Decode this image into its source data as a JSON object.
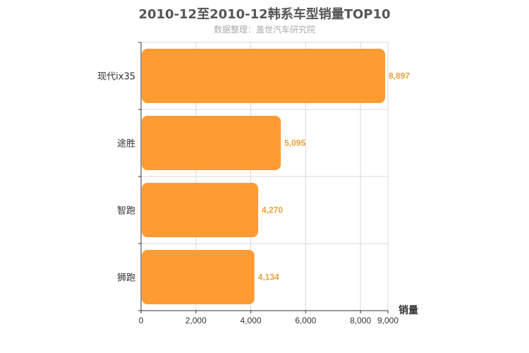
{
  "chart_data": {
    "type": "bar",
    "orientation": "horizontal",
    "title": "2010-12至2010-12韩系车型销量TOP10",
    "subtitle": "数据整理：盖世汽车研究院",
    "categories": [
      "现代ix35",
      "途胜",
      "智跑",
      "狮跑"
    ],
    "values": [
      8897,
      5095,
      4270,
      4134
    ],
    "value_labels": [
      "8,897",
      "5,095",
      "4,270",
      "4,134"
    ],
    "xlabel": "销量",
    "ylabel": "",
    "xlim": [
      0,
      9000
    ],
    "x_ticks": [
      0,
      2000,
      4000,
      6000,
      8000,
      9000
    ],
    "x_tick_labels": [
      "0",
      "2,000",
      "4,000",
      "6,000",
      "8,000",
      "9,000"
    ],
    "grid": true,
    "legend": "none",
    "bar_color": "#ff9b33",
    "label_color": "#e8a23a"
  }
}
